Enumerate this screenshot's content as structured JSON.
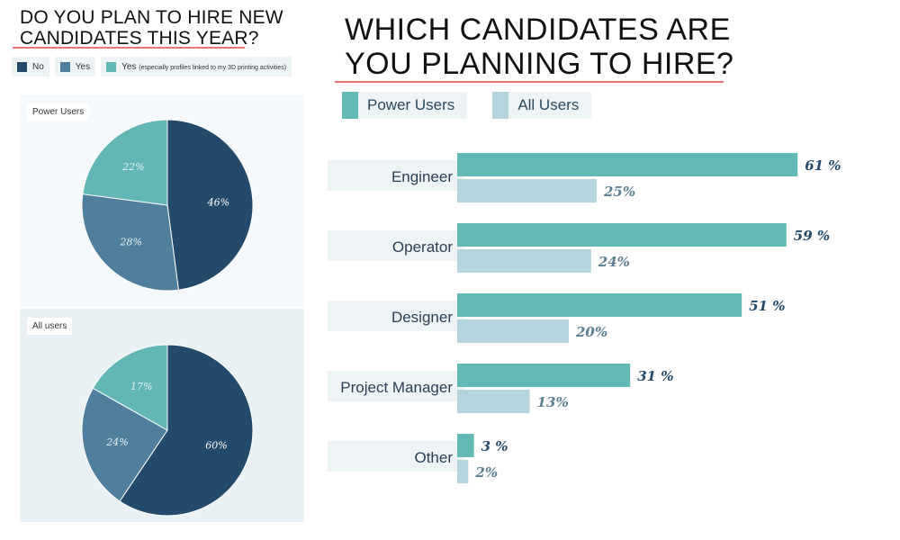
{
  "left_title": [
    "DO YOU PLAN TO HIRE NEW",
    "CANDIDATES THIS YEAR?"
  ],
  "right_title": [
    "WHICH CANDIDATES ARE",
    "YOU PLANNING TO HIRE?"
  ],
  "left_legend": [
    {
      "label": "No",
      "color": "#234a6b"
    },
    {
      "label": "Yes",
      "color": "#4f7f9d"
    },
    {
      "label": "Yes",
      "note": "(especially profiles linked to my 3D printing activities)",
      "color": "#62b6b4"
    }
  ],
  "right_legend": [
    {
      "label": "Power Users",
      "color": "#62b9b5"
    },
    {
      "label": "All Users",
      "color": "#b5d5de"
    }
  ],
  "chart_data": [
    {
      "type": "pie",
      "label": "Power Users",
      "slices": [
        {
          "category": "No",
          "value": 46,
          "label": "46%",
          "color": "#234a6b"
        },
        {
          "category": "Yes",
          "value": 28,
          "label": "28%",
          "color": "#4f7f9d"
        },
        {
          "category": "Yes (especially profiles linked to my 3D printing activities)",
          "value": 22,
          "label": "22%",
          "color": "#62b6b4"
        }
      ]
    },
    {
      "type": "pie",
      "label": "All users",
      "slices": [
        {
          "category": "No",
          "value": 60,
          "label": "60%",
          "color": "#234a6b"
        },
        {
          "category": "Yes",
          "value": 24,
          "label": "24%",
          "color": "#4f7f9d"
        },
        {
          "category": "Yes (especially profiles linked to my 3D printing activities)",
          "value": 17,
          "label": "17%",
          "color": "#62b6b4"
        }
      ]
    },
    {
      "type": "bar",
      "orientation": "horizontal",
      "categories": [
        "Engineer",
        "Operator",
        "Designer",
        "Project Manager",
        "Other"
      ],
      "series": [
        {
          "name": "Power Users",
          "values": [
            61,
            59,
            51,
            31,
            3
          ],
          "labels": [
            "61 %",
            "59 %",
            "51 %",
            "31 %",
            "3 %"
          ],
          "color": "#62b9b5"
        },
        {
          "name": "All Users",
          "values": [
            25,
            24,
            20,
            13,
            2
          ],
          "labels": [
            "25%",
            "24%",
            "20%",
            "13%",
            "2%"
          ],
          "color": "#b5d5de"
        }
      ]
    }
  ]
}
